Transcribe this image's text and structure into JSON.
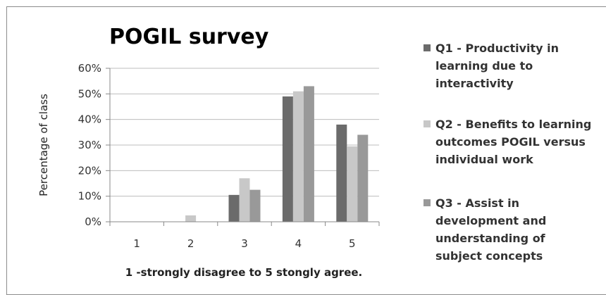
{
  "chart_data": {
    "type": "bar",
    "title": "POGIL survey",
    "xlabel": "1 -strongly disagree to 5 stongly agree.",
    "ylabel": "Percentage of class",
    "categories": [
      "1",
      "2",
      "3",
      "4",
      "5"
    ],
    "ylim": [
      0,
      60
    ],
    "yticks": [
      "0%",
      "10%",
      "20%",
      "30%",
      "40%",
      "50%",
      "60%"
    ],
    "grid": true,
    "legend_position": "right",
    "series": [
      {
        "name": "Q1 - Productivity in learning due to interactivity",
        "name_lines": [
          "Q1 - Productivity in",
          "learning due to",
          "interactivity"
        ],
        "color": "#6b6b6b",
        "values": [
          0,
          0,
          10.5,
          49,
          38
        ]
      },
      {
        "name": "Q2 - Benefits to learning outcomes POGIL versus individual work",
        "name_lines": [
          "Q2 - Benefits to learning",
          "outcomes POGIL versus",
          "individual work"
        ],
        "color": "#c8c8c8",
        "values": [
          0,
          2.5,
          17,
          51,
          29.5
        ]
      },
      {
        "name": "Q3 - Assist in development and understanding of subject concepts",
        "name_lines": [
          "Q3 - Assist in",
          "development and",
          "understanding of",
          "subject concepts"
        ],
        "color": "#999999",
        "values": [
          0,
          0,
          12.5,
          53,
          34
        ]
      }
    ]
  }
}
